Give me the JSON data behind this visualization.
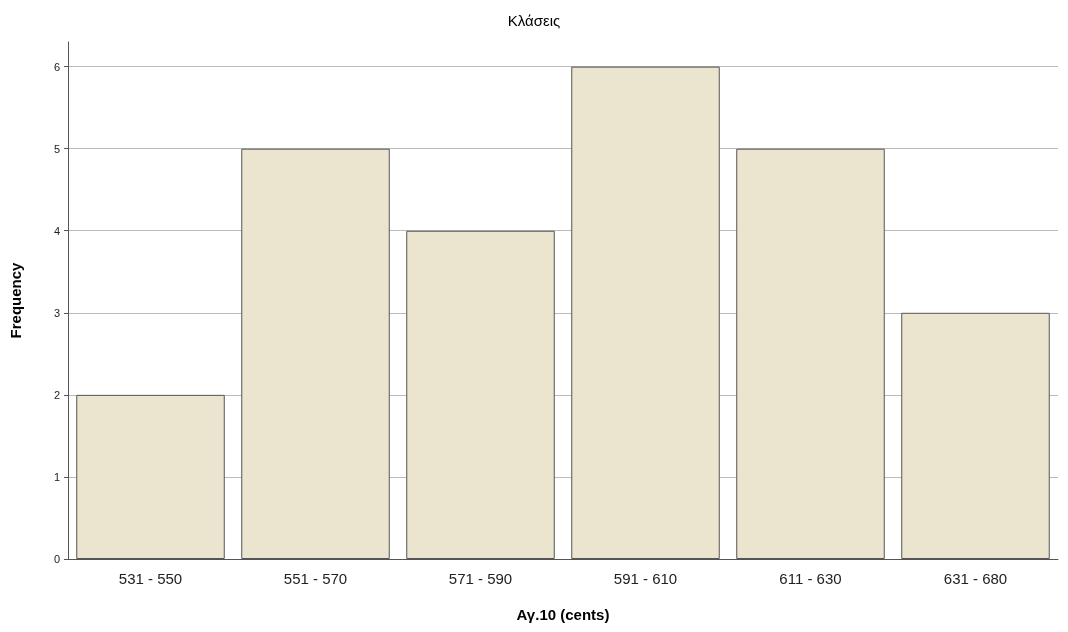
{
  "chart_data": {
    "type": "bar",
    "title": "Κλάσεις",
    "xlabel": "Αγ.10 (cents)",
    "ylabel": "Frequency",
    "categories": [
      "531 - 550",
      "551 - 570",
      "571 - 590",
      "591 - 610",
      "611 - 630",
      "631 - 680"
    ],
    "values": [
      2,
      5,
      4,
      6,
      5,
      3
    ],
    "color": "#ebe4cf",
    "ylim": [
      0,
      6.3
    ],
    "yticks": [
      0,
      1,
      2,
      3,
      4,
      5,
      6
    ],
    "grid": "y"
  }
}
